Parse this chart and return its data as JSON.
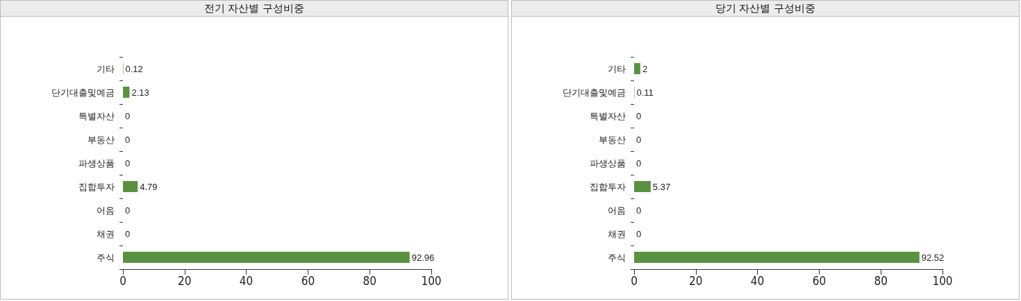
{
  "chart_data": [
    {
      "type": "bar",
      "orientation": "horizontal",
      "title": "전기 자산별 구성비중",
      "categories": [
        "기타",
        "단기대출및예금",
        "특별자산",
        "부동산",
        "파생상품",
        "집합투자",
        "어음",
        "채권",
        "주식"
      ],
      "values": [
        0.12,
        2.13,
        0,
        0,
        0,
        4.79,
        0,
        0,
        92.96
      ],
      "color": "#5a9141",
      "xlim": [
        0,
        100
      ],
      "xticks": [
        0,
        20,
        40,
        60,
        80,
        100
      ],
      "data_labels": true,
      "grid": false
    },
    {
      "type": "bar",
      "orientation": "horizontal",
      "title": "당기 자산별 구성비중",
      "categories": [
        "기타",
        "단기대출및예금",
        "특별자산",
        "부동산",
        "파생상품",
        "집합투자",
        "어음",
        "채권",
        "주식"
      ],
      "values": [
        2,
        0.11,
        0,
        0,
        0,
        5.37,
        0,
        0,
        92.52
      ],
      "color": "#5a9141",
      "xlim": [
        0,
        100
      ],
      "xticks": [
        0,
        20,
        40,
        60,
        80,
        100
      ],
      "data_labels": true,
      "grid": false
    }
  ]
}
